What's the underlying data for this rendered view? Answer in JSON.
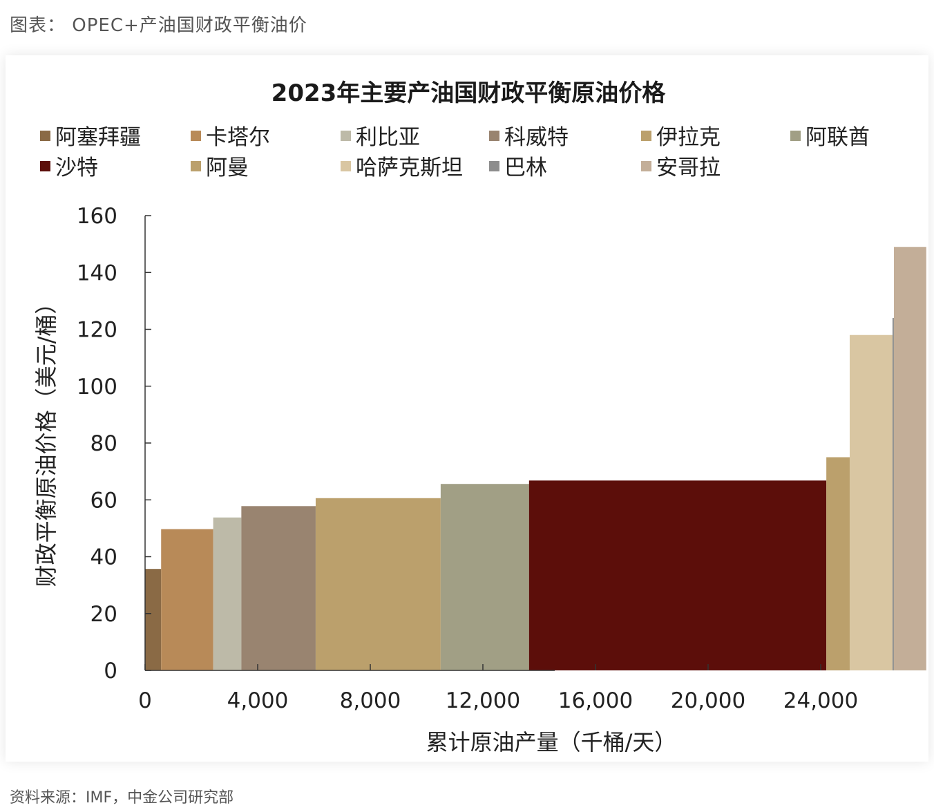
{
  "caption": "图表： OPEC+产油国财政平衡油价",
  "source": "资料来源：IMF，中金公司研究部",
  "chart_data": {
    "type": "bar",
    "title": "2023年主要产油国财政平衡原油价格",
    "xlabel": "累计原油产量（千桶/天）",
    "ylabel": "财政平衡原油价格（美元/桶）",
    "xlim": [
      0,
      27800
    ],
    "ylim": [
      0,
      160
    ],
    "xticks": [
      0,
      4000,
      8000,
      12000,
      16000,
      20000,
      24000
    ],
    "xtick_labels": [
      "0",
      "4,000",
      "8,000",
      "12,000",
      "16,000",
      "20,000",
      "24,000"
    ],
    "yticks": [
      0,
      20,
      40,
      60,
      80,
      100,
      120,
      140,
      160
    ],
    "ytick_labels": [
      "0",
      "20",
      "40",
      "60",
      "80",
      "100",
      "120",
      "140",
      "160"
    ],
    "legend_position": "top",
    "series": [
      {
        "name": "阿塞拜疆",
        "x_start": 0,
        "x_end": 570,
        "value": 35.7,
        "color": "#8a6a45"
      },
      {
        "name": "卡塔尔",
        "x_start": 570,
        "x_end": 2420,
        "value": 49.7,
        "color": "#b88a58"
      },
      {
        "name": "利比亚",
        "x_start": 2420,
        "x_end": 3420,
        "value": 53.8,
        "color": "#bdbaa8"
      },
      {
        "name": "科威特",
        "x_start": 3420,
        "x_end": 6060,
        "value": 57.8,
        "color": "#998470"
      },
      {
        "name": "伊拉克",
        "x_start": 6060,
        "x_end": 10500,
        "value": 60.6,
        "color": "#bba06c"
      },
      {
        "name": "阿联酋",
        "x_start": 10500,
        "x_end": 13640,
        "value": 65.6,
        "color": "#a19f85"
      },
      {
        "name": "沙特",
        "x_start": 13640,
        "x_end": 24200,
        "value": 66.8,
        "color": "#5c0e0a"
      },
      {
        "name": "阿曼",
        "x_start": 24200,
        "x_end": 25030,
        "value": 75.0,
        "color": "#bba06c"
      },
      {
        "name": "哈萨克斯坦",
        "x_start": 25030,
        "x_end": 26550,
        "value": 118.0,
        "color": "#d9c6a2"
      },
      {
        "name": "巴林",
        "x_start": 26550,
        "x_end": 26600,
        "value": 124.0,
        "color": "#8d8d8d"
      },
      {
        "name": "安哥拉",
        "x_start": 26600,
        "x_end": 27750,
        "value": 149.0,
        "color": "#c3ae98"
      }
    ]
  }
}
